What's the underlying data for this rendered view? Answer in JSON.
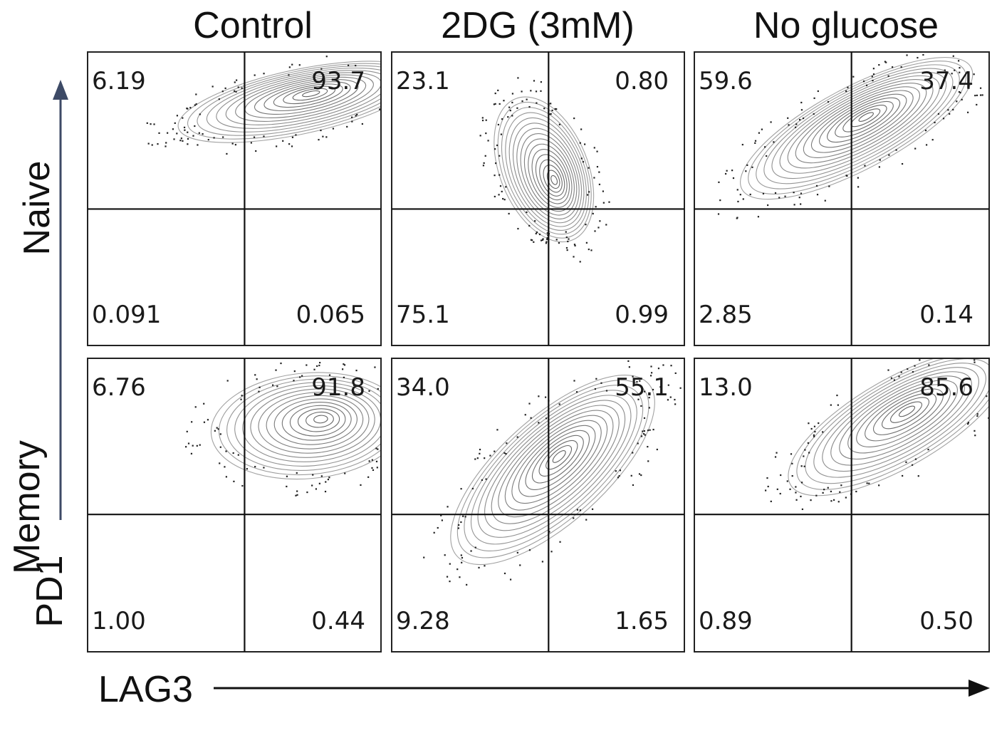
{
  "column_titles": [
    "Control",
    "2DG (3mM)",
    "No glucose"
  ],
  "row_labels": [
    "Naive",
    "Memory"
  ],
  "y_axis_label": "PD1",
  "x_axis_label": "LAG3",
  "colors": {
    "axis": "#111111",
    "y_arrow": "#3d4a66",
    "contour": "#555555",
    "dots": "#222222"
  },
  "chart_data": {
    "type": "contour-quadrant-grid",
    "x_marker": "LAG3",
    "y_marker": "PD1",
    "columns": [
      "Control",
      "2DG (3mM)",
      "No glucose"
    ],
    "rows": [
      "Naive",
      "Memory"
    ],
    "quadrant_order": [
      "upper-left",
      "upper-right",
      "lower-left",
      "lower-right"
    ],
    "panels": [
      {
        "row": "Naive",
        "column": "Control",
        "quadrants": {
          "upper_left": "6.19",
          "upper_right": "93.7",
          "lower_left": "0.091",
          "lower_right": "0.065"
        }
      },
      {
        "row": "Naive",
        "column": "2DG (3mM)",
        "quadrants": {
          "upper_left": "23.1",
          "upper_right": "0.80",
          "lower_left": "75.1",
          "lower_right": "0.99"
        }
      },
      {
        "row": "Naive",
        "column": "No glucose",
        "quadrants": {
          "upper_left": "59.6",
          "upper_right": "37.4",
          "lower_left": "2.85",
          "lower_right": "0.14"
        }
      },
      {
        "row": "Memory",
        "column": "Control",
        "quadrants": {
          "upper_left": "6.76",
          "upper_right": "91.8",
          "lower_left": "1.00",
          "lower_right": "0.44"
        }
      },
      {
        "row": "Memory",
        "column": "2DG (3mM)",
        "quadrants": {
          "upper_left": "34.0",
          "upper_right": "55.1",
          "lower_left": "9.28",
          "lower_right": "1.65"
        }
      },
      {
        "row": "Memory",
        "column": "No glucose",
        "quadrants": {
          "upper_left": "13.0",
          "upper_right": "85.6",
          "lower_left": "0.89",
          "lower_right": "0.50"
        }
      }
    ]
  }
}
